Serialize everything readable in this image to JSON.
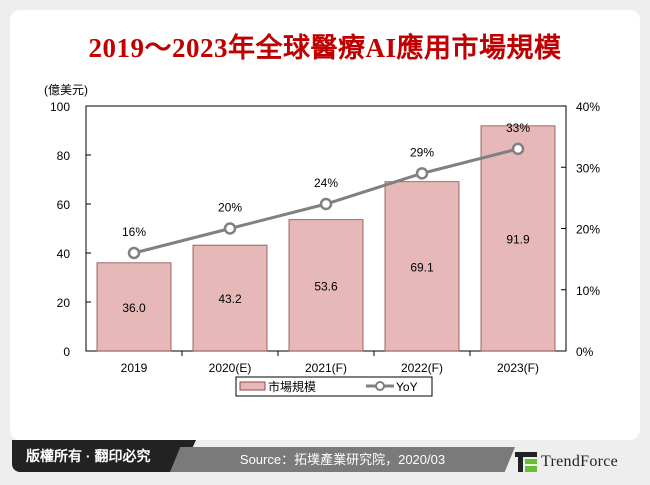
{
  "title": "2019～2023年全球醫療AI應用市場規模",
  "footer": {
    "copyright": "版權所有 · 翻印必究",
    "source": "Source：拓墣產業研究院，2020/03",
    "logo": "TrendForce"
  },
  "chart_data": {
    "type": "bar+line",
    "categories": [
      "2019",
      "2020(E)",
      "2021(F)",
      "2022(F)",
      "2023(F)"
    ],
    "series": [
      {
        "name": "市場規模",
        "type": "bar",
        "axis": "left",
        "values": [
          36.0,
          43.2,
          53.6,
          69.1,
          91.9
        ],
        "labels": [
          "36.0",
          "43.2",
          "53.6",
          "69.1",
          "91.9"
        ],
        "color": "#e6b9b8"
      },
      {
        "name": "YoY",
        "type": "line",
        "axis": "right",
        "values": [
          16,
          20,
          24,
          29,
          33
        ],
        "labels": [
          "16%",
          "20%",
          "24%",
          "29%",
          "33%"
        ],
        "color": "#808080"
      }
    ],
    "ylabel": "(億美元)",
    "ylim": [
      0,
      100
    ],
    "yticks": [
      "0",
      "20",
      "40",
      "60",
      "80",
      "100"
    ],
    "y2lim": [
      0,
      40
    ],
    "y2ticks": [
      "0%",
      "10%",
      "20%",
      "30%",
      "40%"
    ],
    "legend": "bottom",
    "grid": false
  }
}
